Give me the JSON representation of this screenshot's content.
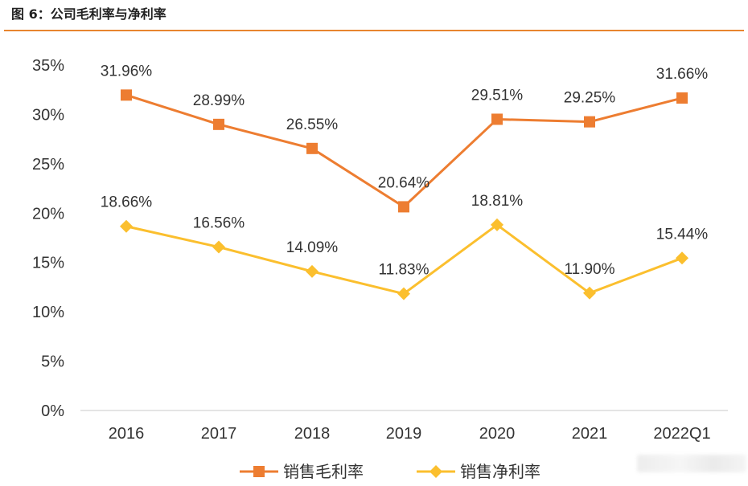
{
  "figure": {
    "title": "图 6：公司毛利率与净利率"
  },
  "chart_data": {
    "type": "line",
    "categories": [
      "2016",
      "2017",
      "2018",
      "2019",
      "2020",
      "2021",
      "2022Q1"
    ],
    "ylim": [
      0,
      35
    ],
    "yticks": [
      "0%",
      "5%",
      "10%",
      "15%",
      "20%",
      "25%",
      "30%",
      "35%"
    ],
    "grid": false,
    "legend_position": "bottom",
    "series": [
      {
        "name": "销售毛利率",
        "color": "#ed7d31",
        "marker": "square",
        "values": [
          31.96,
          28.99,
          26.55,
          20.64,
          29.51,
          29.25,
          31.66
        ],
        "labels": [
          "31.96%",
          "28.99%",
          "26.55%",
          "20.64%",
          "29.51%",
          "29.25%",
          "31.66%"
        ]
      },
      {
        "name": "销售净利率",
        "color": "#fbbf2e",
        "marker": "diamond",
        "values": [
          18.66,
          16.56,
          14.09,
          11.83,
          18.81,
          11.9,
          15.44
        ],
        "labels": [
          "18.66%",
          "16.56%",
          "14.09%",
          "11.83%",
          "18.81%",
          "11.90%",
          "15.44%"
        ]
      }
    ]
  }
}
